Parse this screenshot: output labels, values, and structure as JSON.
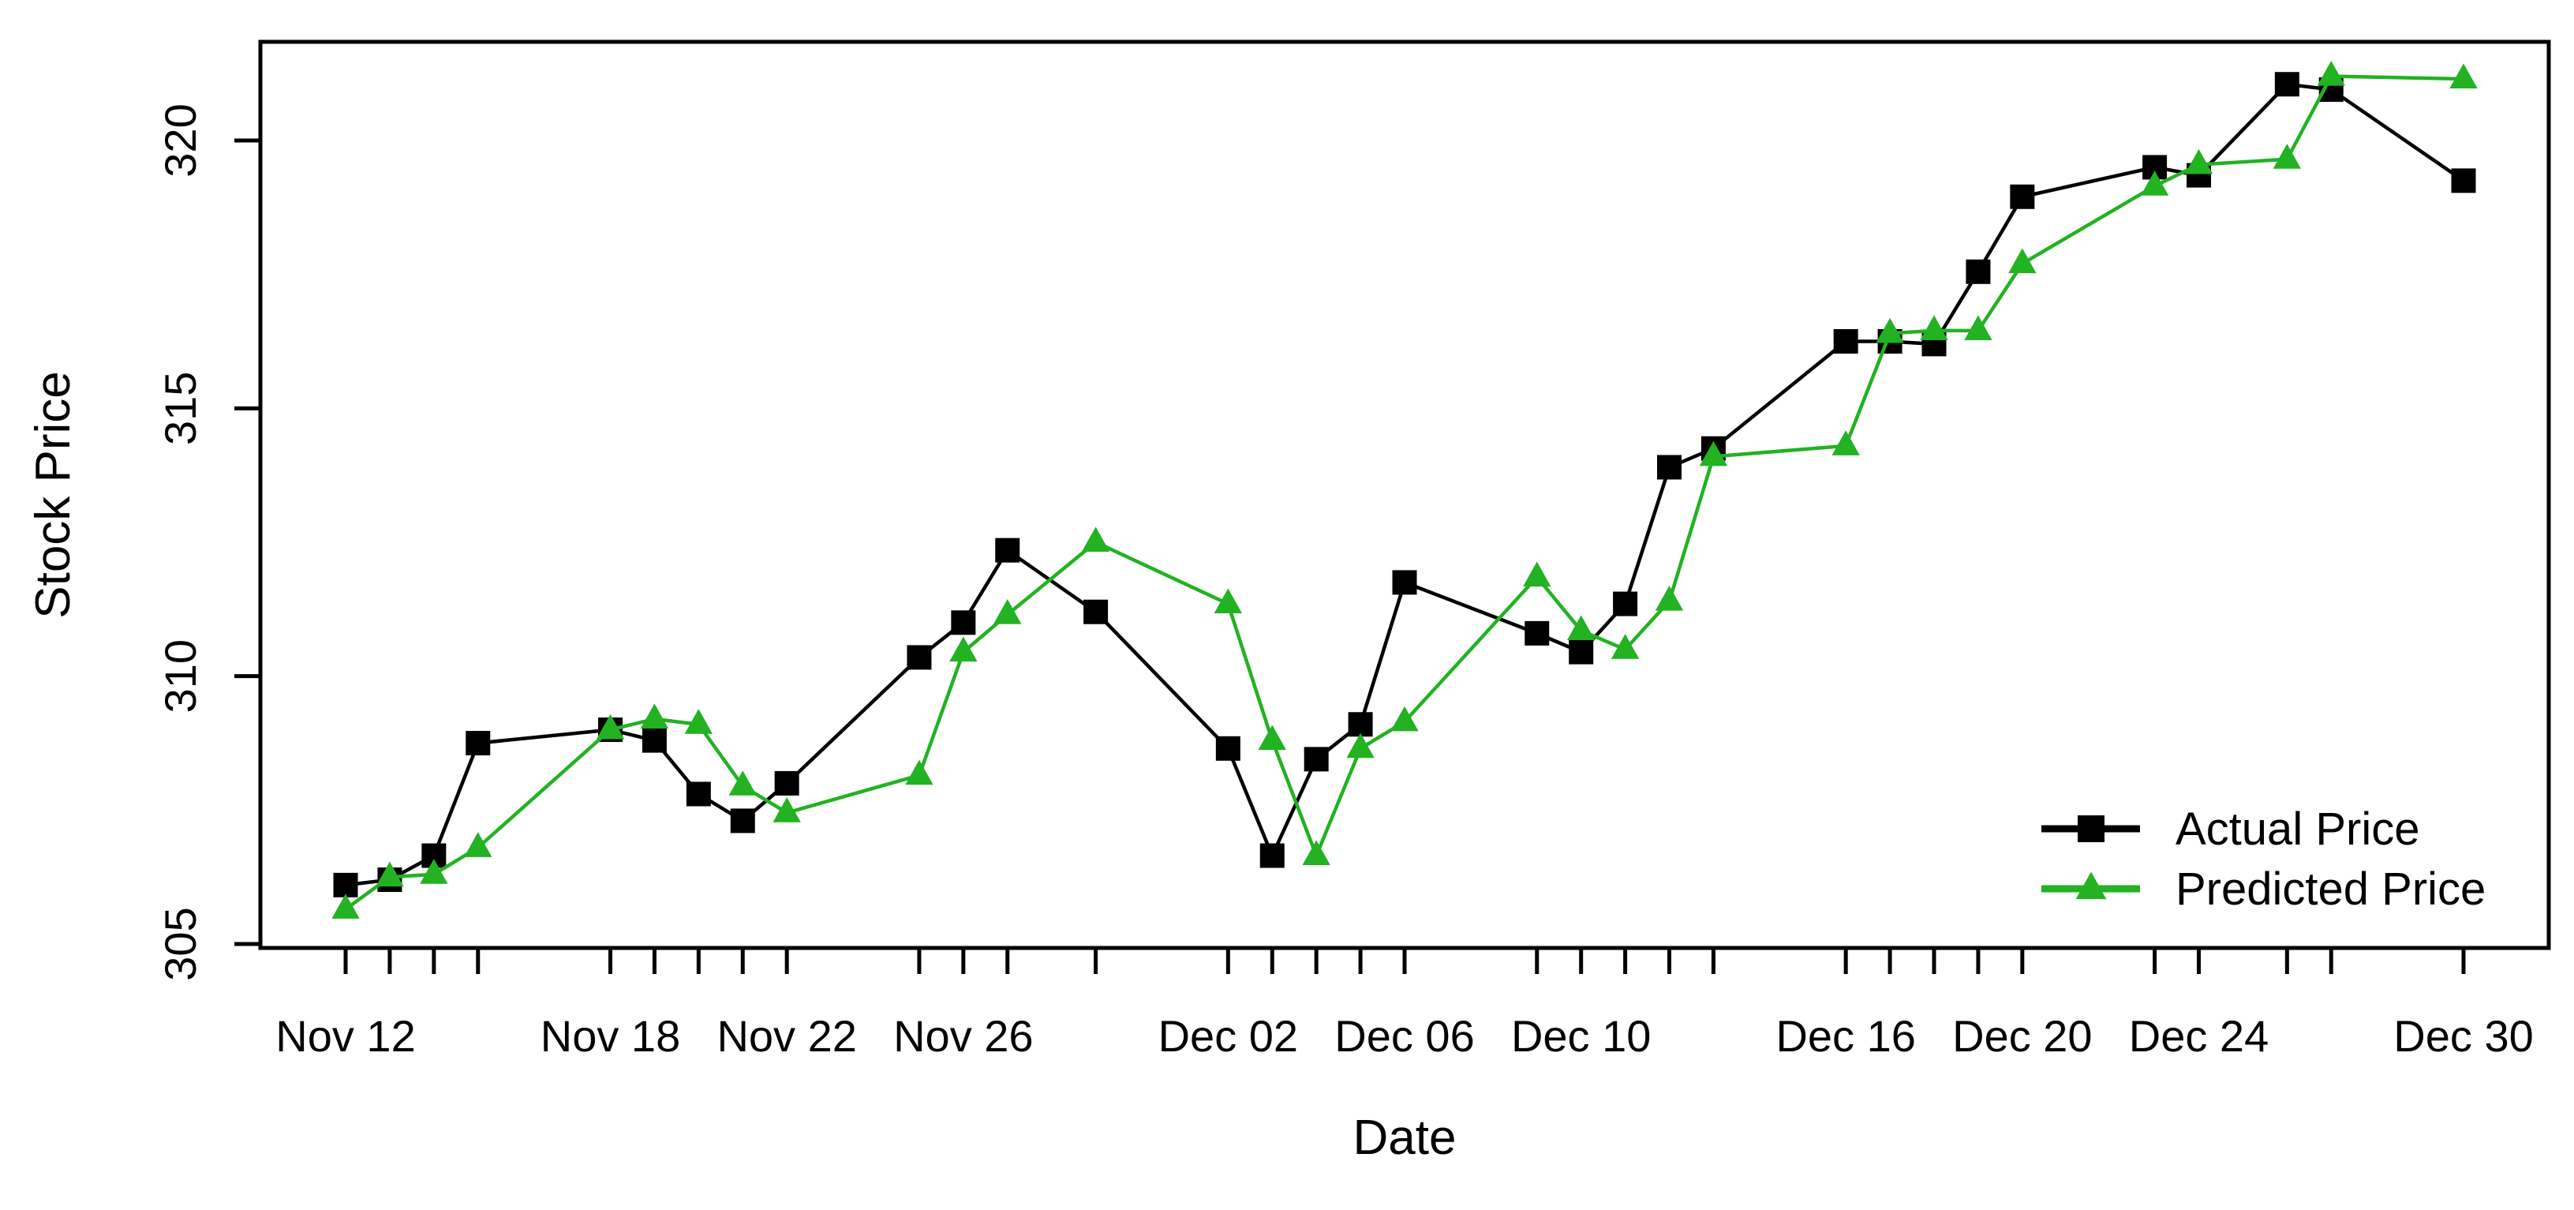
{
  "figure": {
    "background": "#ffffff"
  },
  "chart_data": {
    "type": "line",
    "title": "",
    "xlabel": "Date",
    "ylabel": "Stock Price",
    "grid": "off",
    "legend_position": "bottom-right",
    "y_ticks": [
      305,
      310,
      315,
      320
    ],
    "ylim": [
      304.9,
      321.9
    ],
    "x_categories": [
      "Nov 12",
      "Nov 13",
      "Nov 14",
      "Nov 15",
      "Nov 18",
      "Nov 19",
      "Nov 20",
      "Nov 21",
      "Nov 22",
      "Nov 25",
      "Nov 26",
      "Nov 27",
      "Nov 29",
      "Dec 02",
      "Dec 03",
      "Dec 04",
      "Dec 05",
      "Dec 06",
      "Dec 09",
      "Dec 10",
      "Dec 11",
      "Dec 12",
      "Dec 13",
      "Dec 16",
      "Dec 17",
      "Dec 18",
      "Dec 19",
      "Dec 20",
      "Dec 23",
      "Dec 24",
      "Dec 26",
      "Dec 27",
      "Dec 30"
    ],
    "day_offsets": [
      0,
      1,
      2,
      3,
      6,
      7,
      8,
      9,
      10,
      13,
      14,
      15,
      17,
      20,
      21,
      22,
      23,
      24,
      27,
      28,
      29,
      30,
      31,
      34,
      35,
      36,
      37,
      38,
      41,
      42,
      44,
      45,
      48
    ],
    "x_tick_labels": [
      {
        "label": "Nov 12",
        "offset": 0
      },
      {
        "label": "Nov 18",
        "offset": 6
      },
      {
        "label": "Nov 22",
        "offset": 10
      },
      {
        "label": "Nov 26",
        "offset": 14
      },
      {
        "label": "Dec 02",
        "offset": 20
      },
      {
        "label": "Dec 06",
        "offset": 24
      },
      {
        "label": "Dec 10",
        "offset": 28
      },
      {
        "label": "Dec 16",
        "offset": 34
      },
      {
        "label": "Dec 20",
        "offset": 38
      },
      {
        "label": "Dec 24",
        "offset": 42
      },
      {
        "label": "Dec 30",
        "offset": 48
      }
    ],
    "series": [
      {
        "name": "Actual Price",
        "color": "#000000",
        "marker": "square",
        "values": [
          306.1,
          306.2,
          306.65,
          308.75,
          309.0,
          308.8,
          307.8,
          307.3,
          308.0,
          310.35,
          311.0,
          312.35,
          311.2,
          308.65,
          306.65,
          308.45,
          309.1,
          311.75,
          310.8,
          310.45,
          311.35,
          313.9,
          314.25,
          316.25,
          316.25,
          316.2,
          317.55,
          318.95,
          319.5,
          319.35,
          321.05,
          320.95,
          319.25
        ]
      },
      {
        "name": "Predicted Price",
        "color": "#22b222",
        "marker": "triangle-up",
        "values": [
          305.65,
          306.25,
          306.3,
          306.8,
          309.0,
          309.2,
          309.1,
          307.95,
          307.45,
          308.15,
          310.45,
          311.15,
          312.5,
          311.35,
          308.8,
          306.65,
          308.65,
          309.15,
          311.85,
          310.85,
          310.5,
          311.4,
          314.1,
          314.3,
          316.4,
          316.45,
          316.45,
          317.7,
          319.15,
          319.55,
          319.65,
          321.2,
          321.15
        ]
      }
    ]
  }
}
